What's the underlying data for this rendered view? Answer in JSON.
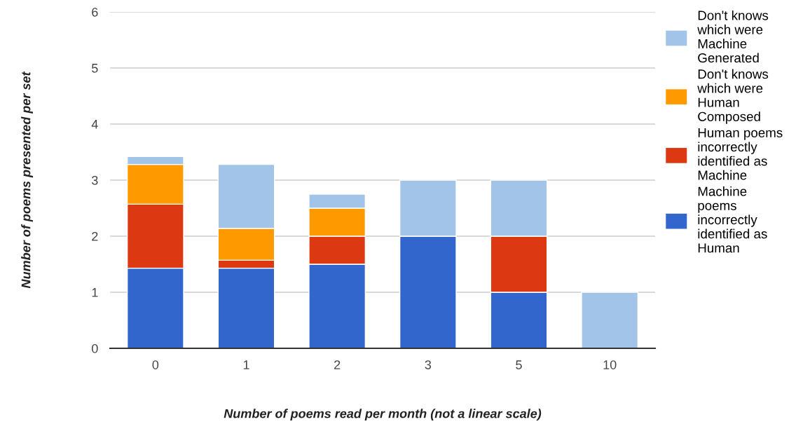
{
  "chart_data": {
    "type": "bar",
    "stacked": true,
    "xlabel": "Number of poems read per month (not a linear scale)",
    "ylabel": "Number of poems presented per set",
    "categories": [
      "0",
      "1",
      "2",
      "3",
      "5",
      "10"
    ],
    "ylim": [
      0,
      6
    ],
    "yticks": [
      0,
      1,
      2,
      3,
      4,
      5,
      6
    ],
    "grid": "y",
    "legend": "right",
    "series": [
      {
        "name": "Machine\npoems\nincorrectly\nidentified as\nHuman",
        "color": "#3366cc",
        "values": [
          1.43,
          1.43,
          1.5,
          2,
          1,
          0
        ]
      },
      {
        "name": "Human poems\nincorrectly\nidentified as\nMachine",
        "color": "#dc3912",
        "values": [
          1.14,
          0.14,
          0.5,
          0,
          1,
          0
        ]
      },
      {
        "name": "Don't knows\nwhich were\nHuman\nComposed",
        "color": "#ff9900",
        "values": [
          0.71,
          0.57,
          0.5,
          0,
          0,
          0
        ]
      },
      {
        "name": "Don't knows\nwhich were\nMachine\nGenerated",
        "color": "#a2c4e8",
        "values": [
          0.14,
          1.14,
          0.25,
          1,
          1,
          1
        ]
      }
    ]
  }
}
